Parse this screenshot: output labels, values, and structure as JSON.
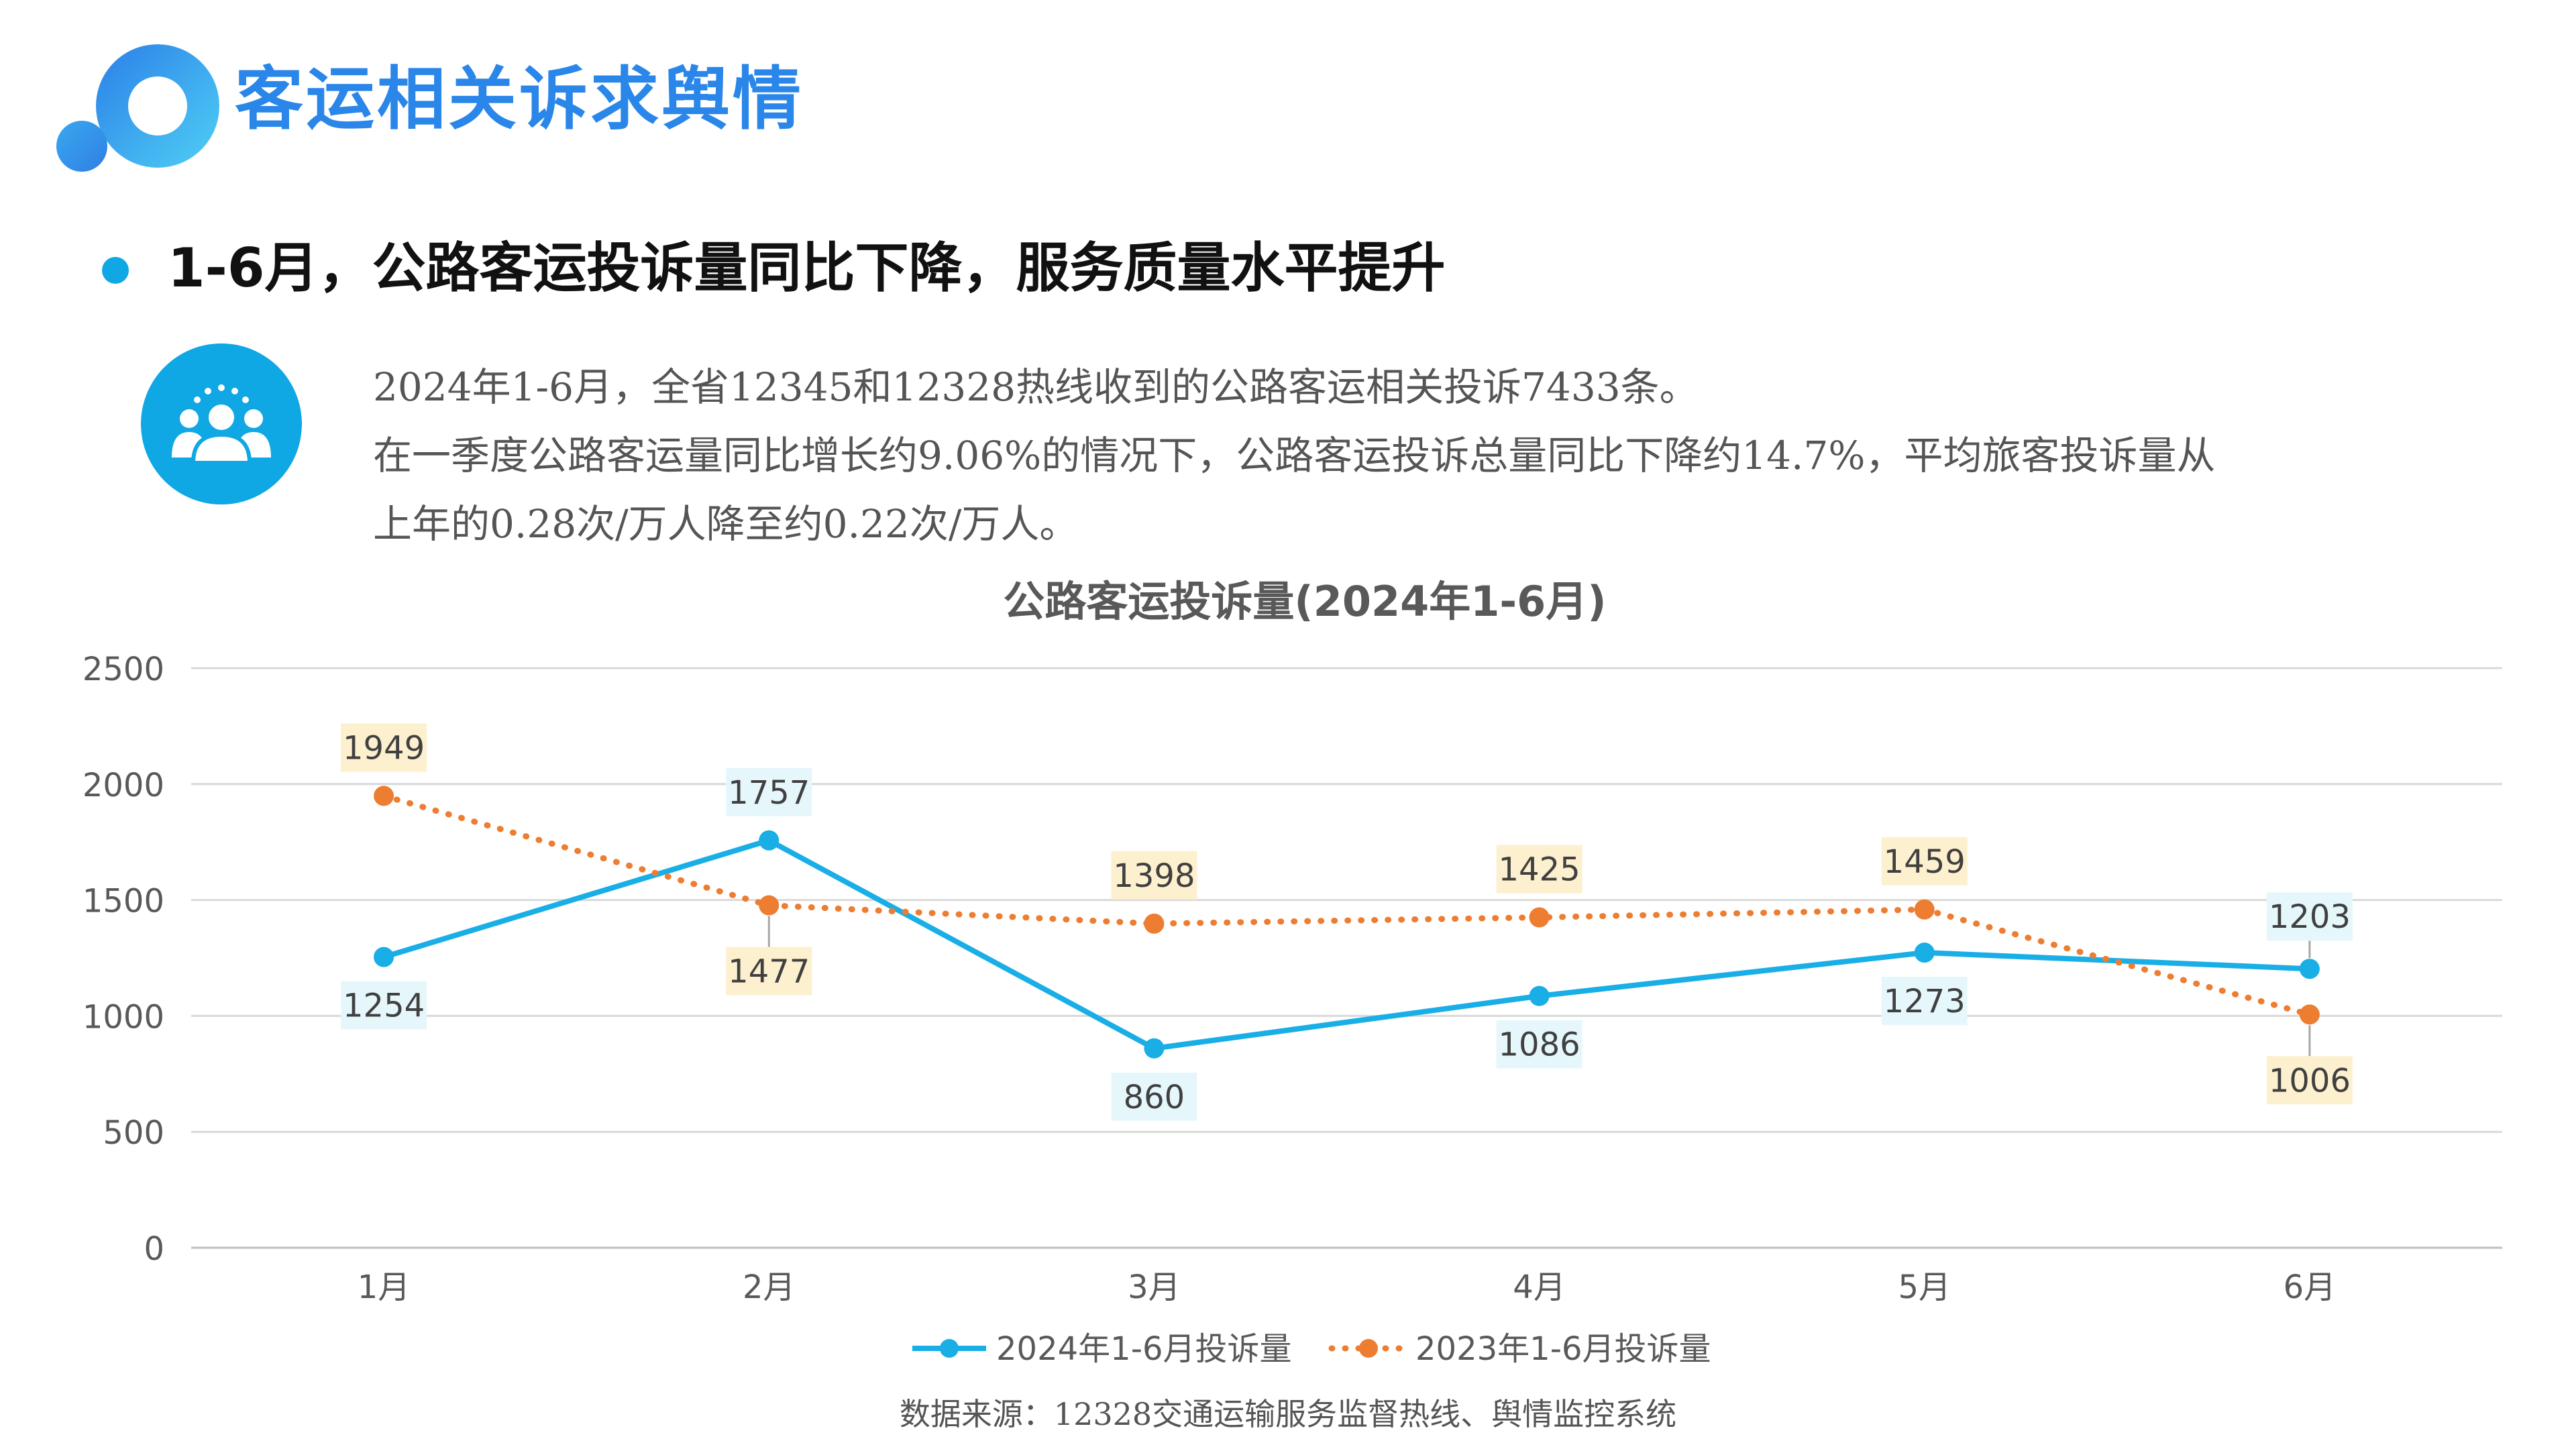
{
  "header": {
    "title": "客运相关诉求舆情",
    "headline": "1-6月，公路客运投诉量同比下降，服务质量水平提升"
  },
  "description": {
    "lines": [
      "2024年1-6月，全省12345和12328热线收到的公路客运相关投诉7433条。",
      "在一季度公路客运量同比增长约9.06%的情况下，公路客运投诉总量同比下降约14.7%，平均旅客投诉量从",
      "上年的0.28次/万人降至约0.22次/万人。"
    ]
  },
  "colors": {
    "brand_blue": "#2a86e8",
    "series_2024": "#19aee6",
    "series_2023": "#ed7d31",
    "label_bg_2024": "#e6f7fc",
    "label_bg_2023": "#fdf0cf"
  },
  "icons": {
    "logo": "ring-logo-icon",
    "people": "people-group-icon"
  },
  "chart_data": {
    "type": "line",
    "title": "公路客运投诉量(2024年1-6月)",
    "categories": [
      "1月",
      "2月",
      "3月",
      "4月",
      "5月",
      "6月"
    ],
    "y_ticks": [
      "0",
      "500",
      "1000",
      "1500",
      "2000",
      "2500"
    ],
    "ylim": [
      0,
      2500
    ],
    "grid": true,
    "legend_position": "bottom",
    "series": [
      {
        "name": "2024年1-6月投诉量",
        "values": [
          1254,
          1757,
          860,
          1086,
          1273,
          1203
        ],
        "style": "solid"
      },
      {
        "name": "2023年1-6月投诉量",
        "values": [
          1949,
          1477,
          1398,
          1425,
          1459,
          1006
        ],
        "style": "dotted"
      }
    ]
  },
  "source": "数据来源：12328交通运输服务监督热线、舆情监控系统"
}
